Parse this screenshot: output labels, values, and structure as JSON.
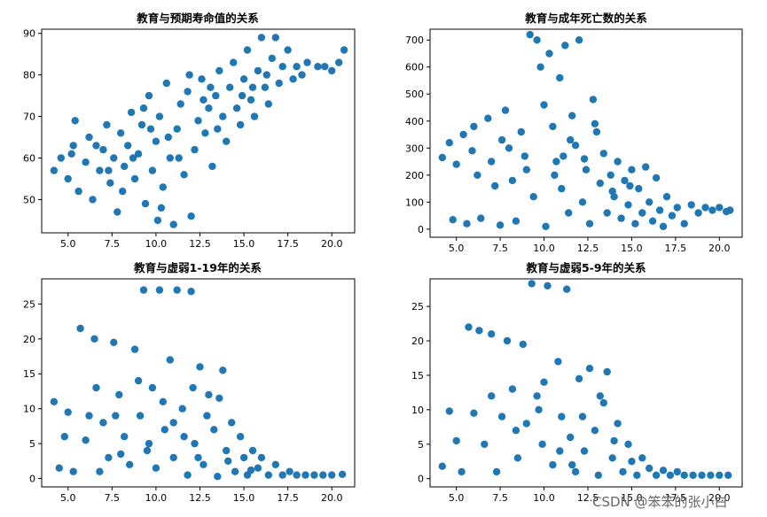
{
  "watermark": "CSDN @笨笨的张小白",
  "colors": {
    "marker": "#1f77b4",
    "axes": "#000000",
    "background": "#ffffff"
  },
  "chart_data": [
    {
      "type": "scatter",
      "title": "教育与预期寿命值的关系",
      "xlabel": "",
      "ylabel": "",
      "xlim": [
        3.5,
        21.3
      ],
      "ylim": [
        42,
        91
      ],
      "xticks": [
        5.0,
        7.5,
        10.0,
        12.5,
        15.0,
        17.5,
        20.0
      ],
      "xtick_labels": [
        "5.0",
        "7.5",
        "10.0",
        "12.5",
        "15.0",
        "17.5",
        "20.0"
      ],
      "yticks": [
        50,
        60,
        70,
        80,
        90
      ],
      "ytick_labels": [
        "50",
        "60",
        "70",
        "80",
        "90"
      ],
      "grid": false,
      "points": [
        [
          4.2,
          57
        ],
        [
          4.6,
          60
        ],
        [
          5.0,
          55
        ],
        [
          5.3,
          63
        ],
        [
          5.4,
          69
        ],
        [
          5.6,
          52
        ],
        [
          6.0,
          59
        ],
        [
          6.2,
          65
        ],
        [
          6.4,
          50
        ],
        [
          6.8,
          57
        ],
        [
          7.0,
          62
        ],
        [
          7.2,
          68
        ],
        [
          7.4,
          54
        ],
        [
          7.6,
          60
        ],
        [
          7.8,
          47
        ],
        [
          8.0,
          66
        ],
        [
          8.2,
          58
        ],
        [
          8.4,
          63
        ],
        [
          8.6,
          71
        ],
        [
          8.8,
          55
        ],
        [
          9.0,
          61
        ],
        [
          9.2,
          68
        ],
        [
          9.4,
          49
        ],
        [
          9.6,
          75
        ],
        [
          9.8,
          57
        ],
        [
          10.0,
          64
        ],
        [
          10.1,
          45
        ],
        [
          10.2,
          70
        ],
        [
          10.4,
          53
        ],
        [
          10.6,
          78
        ],
        [
          10.8,
          60
        ],
        [
          11.0,
          44
        ],
        [
          11.2,
          67
        ],
        [
          11.4,
          73
        ],
        [
          11.6,
          56
        ],
        [
          11.8,
          76
        ],
        [
          12.0,
          46
        ],
        [
          12.2,
          62
        ],
        [
          12.4,
          69
        ],
        [
          12.6,
          79
        ],
        [
          12.8,
          66
        ],
        [
          13.0,
          72
        ],
        [
          13.2,
          58
        ],
        [
          13.4,
          75
        ],
        [
          13.6,
          81
        ],
        [
          13.8,
          70
        ],
        [
          14.0,
          64
        ],
        [
          14.2,
          77
        ],
        [
          14.4,
          83
        ],
        [
          14.6,
          72
        ],
        [
          14.8,
          68
        ],
        [
          15.0,
          79
        ],
        [
          15.2,
          86
        ],
        [
          15.4,
          74
        ],
        [
          15.6,
          70
        ],
        [
          15.8,
          81
        ],
        [
          16.0,
          89
        ],
        [
          16.2,
          77
        ],
        [
          16.4,
          73
        ],
        [
          16.6,
          84
        ],
        [
          16.8,
          89
        ],
        [
          17.0,
          78
        ],
        [
          17.2,
          82
        ],
        [
          17.5,
          86
        ],
        [
          17.8,
          79
        ],
        [
          18.0,
          82
        ],
        [
          18.3,
          80
        ],
        [
          18.6,
          83
        ],
        [
          19.2,
          82
        ],
        [
          19.6,
          82
        ],
        [
          20.0,
          81
        ],
        [
          20.4,
          83
        ],
        [
          20.7,
          86
        ],
        [
          5.2,
          61
        ],
        [
          6.6,
          63
        ],
        [
          8.1,
          52
        ],
        [
          9.3,
          72
        ],
        [
          10.7,
          65
        ],
        [
          11.9,
          80
        ],
        [
          13.5,
          67
        ],
        [
          15.5,
          77
        ],
        [
          12.7,
          74
        ],
        [
          11.3,
          60
        ],
        [
          10.3,
          48
        ],
        [
          9.7,
          67
        ],
        [
          14.9,
          75
        ],
        [
          16.3,
          80
        ],
        [
          7.3,
          57
        ],
        [
          8.7,
          60
        ],
        [
          13.1,
          77
        ]
      ]
    },
    {
      "type": "scatter",
      "title": "教育与成年死亡数的关系",
      "xlabel": "",
      "ylabel": "",
      "xlim": [
        3.5,
        21.3
      ],
      "ylim": [
        -30,
        740
      ],
      "xticks": [
        5.0,
        7.5,
        10.0,
        12.5,
        15.0,
        17.5,
        20.0
      ],
      "xtick_labels": [
        "5.0",
        "7.5",
        "10.0",
        "12.5",
        "15.0",
        "17.5",
        "20.0"
      ],
      "yticks": [
        0,
        100,
        200,
        300,
        400,
        500,
        600,
        700
      ],
      "ytick_labels": [
        "0",
        "100",
        "200",
        "300",
        "400",
        "500",
        "600",
        "700"
      ],
      "grid": false,
      "points": [
        [
          4.2,
          265
        ],
        [
          4.6,
          320
        ],
        [
          4.8,
          35
        ],
        [
          5.0,
          240
        ],
        [
          5.4,
          350
        ],
        [
          5.6,
          20
        ],
        [
          5.9,
          290
        ],
        [
          6.2,
          200
        ],
        [
          6.4,
          40
        ],
        [
          6.8,
          410
        ],
        [
          7.0,
          250
        ],
        [
          7.2,
          160
        ],
        [
          7.5,
          15
        ],
        [
          7.8,
          440
        ],
        [
          8.0,
          300
        ],
        [
          8.2,
          180
        ],
        [
          8.4,
          30
        ],
        [
          8.7,
          360
        ],
        [
          9.0,
          220
        ],
        [
          9.2,
          720
        ],
        [
          9.4,
          120
        ],
        [
          9.6,
          700
        ],
        [
          9.8,
          600
        ],
        [
          10.0,
          460
        ],
        [
          10.1,
          10
        ],
        [
          10.3,
          650
        ],
        [
          10.5,
          380
        ],
        [
          10.7,
          250
        ],
        [
          10.9,
          560
        ],
        [
          11.0,
          150
        ],
        [
          11.2,
          680
        ],
        [
          11.4,
          60
        ],
        [
          11.6,
          420
        ],
        [
          11.8,
          310
        ],
        [
          12.0,
          700
        ],
        [
          12.2,
          100
        ],
        [
          12.4,
          220
        ],
        [
          12.6,
          20
        ],
        [
          12.8,
          480
        ],
        [
          13.0,
          360
        ],
        [
          13.2,
          170
        ],
        [
          13.4,
          280
        ],
        [
          13.6,
          60
        ],
        [
          13.8,
          200
        ],
        [
          14.0,
          120
        ],
        [
          14.2,
          250
        ],
        [
          14.4,
          40
        ],
        [
          14.6,
          180
        ],
        [
          14.8,
          90
        ],
        [
          15.0,
          220
        ],
        [
          15.2,
          20
        ],
        [
          15.4,
          150
        ],
        [
          15.6,
          60
        ],
        [
          15.8,
          230
        ],
        [
          16.0,
          100
        ],
        [
          16.2,
          30
        ],
        [
          16.4,
          190
        ],
        [
          16.6,
          70
        ],
        [
          16.8,
          10
        ],
        [
          17.0,
          120
        ],
        [
          17.3,
          50
        ],
        [
          17.6,
          80
        ],
        [
          18.0,
          20
        ],
        [
          18.4,
          90
        ],
        [
          18.8,
          60
        ],
        [
          19.2,
          80
        ],
        [
          19.6,
          70
        ],
        [
          20.0,
          80
        ],
        [
          20.4,
          65
        ],
        [
          20.6,
          70
        ],
        [
          6.0,
          380
        ],
        [
          7.6,
          330
        ],
        [
          8.9,
          270
        ],
        [
          10.6,
          200
        ],
        [
          11.5,
          330
        ],
        [
          12.9,
          390
        ],
        [
          13.9,
          140
        ],
        [
          14.9,
          160
        ],
        [
          12.3,
          260
        ],
        [
          11.1,
          270
        ]
      ]
    },
    {
      "type": "scatter",
      "title": "教育与虚弱1-19年的关系",
      "xlabel": "",
      "ylabel": "",
      "xlim": [
        3.5,
        21.3
      ],
      "ylim": [
        -1.2,
        28.6
      ],
      "xticks": [
        5.0,
        7.5,
        10.0,
        12.5,
        15.0,
        17.5,
        20.0
      ],
      "xtick_labels": [
        "5.0",
        "7.5",
        "10.0",
        "12.5",
        "15.0",
        "17.5",
        "20.0"
      ],
      "yticks": [
        0,
        5,
        10,
        15,
        20,
        25
      ],
      "ytick_labels": [
        "0",
        "5",
        "10",
        "15",
        "20",
        "25"
      ],
      "grid": false,
      "points": [
        [
          4.2,
          11
        ],
        [
          4.5,
          1.5
        ],
        [
          4.8,
          6
        ],
        [
          5.0,
          9.5
        ],
        [
          5.3,
          1
        ],
        [
          5.7,
          21.5
        ],
        [
          6.0,
          5.5
        ],
        [
          6.2,
          9
        ],
        [
          6.5,
          20
        ],
        [
          6.8,
          1
        ],
        [
          7.0,
          8
        ],
        [
          7.3,
          3
        ],
        [
          7.6,
          19.5
        ],
        [
          7.9,
          12
        ],
        [
          8.2,
          6
        ],
        [
          8.5,
          2
        ],
        [
          8.8,
          18.5
        ],
        [
          9.1,
          9
        ],
        [
          9.3,
          27
        ],
        [
          9.5,
          4
        ],
        [
          9.8,
          13
        ],
        [
          10.0,
          1.5
        ],
        [
          10.2,
          27
        ],
        [
          10.5,
          7
        ],
        [
          10.8,
          17
        ],
        [
          11.0,
          3
        ],
        [
          11.2,
          27
        ],
        [
          11.5,
          10
        ],
        [
          11.8,
          0.5
        ],
        [
          12.0,
          26.8
        ],
        [
          12.2,
          5
        ],
        [
          12.5,
          16
        ],
        [
          12.7,
          2
        ],
        [
          13.0,
          12
        ],
        [
          13.3,
          7
        ],
        [
          13.5,
          0.3
        ],
        [
          13.8,
          15.5
        ],
        [
          14.0,
          4
        ],
        [
          14.3,
          8
        ],
        [
          14.5,
          1
        ],
        [
          14.8,
          6
        ],
        [
          15.0,
          3
        ],
        [
          15.2,
          0.5
        ],
        [
          15.5,
          4
        ],
        [
          15.8,
          1.5
        ],
        [
          16.0,
          3
        ],
        [
          16.4,
          0.5
        ],
        [
          16.8,
          2
        ],
        [
          17.2,
          0.5
        ],
        [
          17.6,
          1
        ],
        [
          18.0,
          0.5
        ],
        [
          18.5,
          0.5
        ],
        [
          19.0,
          0.5
        ],
        [
          19.5,
          0.5
        ],
        [
          20.0,
          0.5
        ],
        [
          20.6,
          0.6
        ],
        [
          6.6,
          13
        ],
        [
          7.7,
          9
        ],
        [
          9.0,
          14
        ],
        [
          10.4,
          11
        ],
        [
          11.6,
          6
        ],
        [
          12.9,
          9
        ],
        [
          13.6,
          11.5
        ],
        [
          12.4,
          3
        ],
        [
          11.0,
          8
        ],
        [
          9.6,
          5
        ],
        [
          8.0,
          3.5
        ],
        [
          14.1,
          2.5
        ],
        [
          15.4,
          1.2
        ],
        [
          12.1,
          13
        ]
      ]
    },
    {
      "type": "scatter",
      "title": "教育与虚弱5-9年的关系",
      "xlabel": "",
      "ylabel": "",
      "xlim": [
        3.5,
        21.3
      ],
      "ylim": [
        -1.2,
        29.0
      ],
      "xticks": [
        5.0,
        7.5,
        10.0,
        12.5,
        15.0,
        17.5,
        20.0
      ],
      "xtick_labels": [
        "5.0",
        "7.5",
        "10.0",
        "12.5",
        "15.0",
        "17.5",
        "20.0"
      ],
      "yticks": [
        0,
        5,
        10,
        15,
        20,
        25
      ],
      "ytick_labels": [
        "0",
        "5",
        "10",
        "15",
        "20",
        "25"
      ],
      "grid": false,
      "points": [
        [
          4.2,
          1.8
        ],
        [
          4.6,
          9.8
        ],
        [
          5.0,
          5.5
        ],
        [
          5.3,
          1
        ],
        [
          5.7,
          22
        ],
        [
          6.0,
          9.5
        ],
        [
          6.3,
          21.5
        ],
        [
          6.6,
          5
        ],
        [
          7.0,
          21
        ],
        [
          7.3,
          1
        ],
        [
          7.6,
          9
        ],
        [
          7.9,
          20
        ],
        [
          8.2,
          13
        ],
        [
          8.5,
          3
        ],
        [
          8.8,
          19.5
        ],
        [
          9.0,
          8
        ],
        [
          9.3,
          28.3
        ],
        [
          9.6,
          12
        ],
        [
          9.9,
          5
        ],
        [
          10.2,
          28
        ],
        [
          10.5,
          2
        ],
        [
          10.8,
          17
        ],
        [
          11.0,
          9
        ],
        [
          11.3,
          27.5
        ],
        [
          11.5,
          6
        ],
        [
          11.8,
          1
        ],
        [
          12.0,
          14.5
        ],
        [
          12.3,
          4
        ],
        [
          12.6,
          16
        ],
        [
          12.9,
          7
        ],
        [
          13.1,
          0.5
        ],
        [
          13.4,
          11
        ],
        [
          13.6,
          15.5
        ],
        [
          13.9,
          3
        ],
        [
          14.2,
          8
        ],
        [
          14.5,
          1
        ],
        [
          14.8,
          5
        ],
        [
          15.0,
          2.5
        ],
        [
          15.3,
          0.5
        ],
        [
          15.6,
          3
        ],
        [
          16.0,
          1.5
        ],
        [
          16.4,
          0.5
        ],
        [
          16.8,
          1.2
        ],
        [
          17.2,
          0.5
        ],
        [
          17.6,
          1
        ],
        [
          18.0,
          0.5
        ],
        [
          18.5,
          0.5
        ],
        [
          19.0,
          0.5
        ],
        [
          19.5,
          0.5
        ],
        [
          20.0,
          0.5
        ],
        [
          20.5,
          0.5
        ],
        [
          7.0,
          12
        ],
        [
          8.4,
          7
        ],
        [
          9.7,
          10
        ],
        [
          10.9,
          4
        ],
        [
          12.2,
          9
        ],
        [
          13.2,
          12
        ],
        [
          11.6,
          2
        ],
        [
          10.0,
          14
        ],
        [
          14.0,
          5.5
        ]
      ]
    }
  ]
}
